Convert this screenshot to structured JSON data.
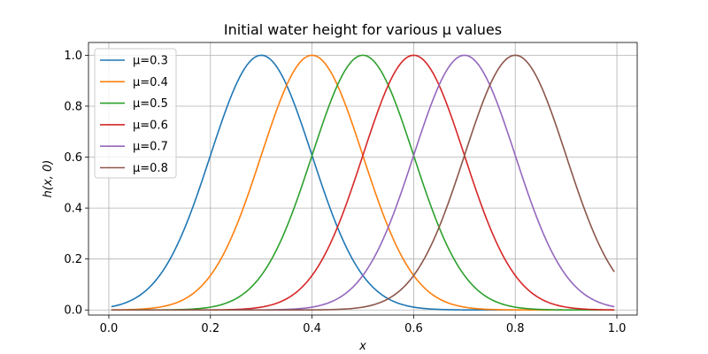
{
  "chart_data": {
    "type": "line",
    "title": "Initial water height for various μ values",
    "xlabel": "x",
    "ylabel": "h(x, 0)",
    "xlim": [
      -0.04,
      1.04
    ],
    "ylim": [
      -0.02,
      1.05
    ],
    "xticks": [
      0.0,
      0.2,
      0.4,
      0.6,
      0.8,
      1.0
    ],
    "xtick_labels": [
      "0.0",
      "0.2",
      "0.4",
      "0.6",
      "0.8",
      "1.0"
    ],
    "yticks": [
      0.0,
      0.2,
      0.4,
      0.6,
      0.8,
      1.0
    ],
    "ytick_labels": [
      "0.0",
      "0.2",
      "0.4",
      "0.6",
      "0.8",
      "1.0"
    ],
    "grid": true,
    "legend_position": "top-left",
    "x_range": [
      0.005,
      0.995
    ],
    "series": [
      {
        "name": "μ=0.3",
        "mu": 0.3,
        "color": "#1f77b4",
        "x": [
          0.005,
          0.05,
          0.1,
          0.15,
          0.2,
          0.25,
          0.3,
          0.35,
          0.4,
          0.45,
          0.5,
          0.55,
          0.6,
          0.65,
          0.7,
          0.75,
          0.8,
          0.85,
          0.9,
          0.95,
          0.995
        ],
        "y": [
          0.013,
          0.044,
          0.135,
          0.325,
          0.607,
          0.882,
          1.0,
          0.882,
          0.607,
          0.325,
          0.135,
          0.044,
          0.011,
          0.002,
          0.0,
          0.0,
          0.0,
          0.0,
          0.0,
          0.0,
          0.0
        ]
      },
      {
        "name": "μ=0.4",
        "mu": 0.4,
        "color": "#ff7f0e",
        "x": [
          0.005,
          0.05,
          0.1,
          0.15,
          0.2,
          0.25,
          0.3,
          0.35,
          0.4,
          0.45,
          0.5,
          0.55,
          0.6,
          0.65,
          0.7,
          0.75,
          0.8,
          0.85,
          0.9,
          0.95,
          0.995
        ],
        "y": [
          0.0,
          0.002,
          0.011,
          0.044,
          0.135,
          0.325,
          0.607,
          0.882,
          1.0,
          0.882,
          0.607,
          0.325,
          0.135,
          0.044,
          0.011,
          0.002,
          0.0,
          0.0,
          0.0,
          0.0,
          0.0
        ]
      },
      {
        "name": "μ=0.5",
        "mu": 0.5,
        "color": "#2ca02c",
        "x": [
          0.005,
          0.05,
          0.1,
          0.15,
          0.2,
          0.25,
          0.3,
          0.35,
          0.4,
          0.45,
          0.5,
          0.55,
          0.6,
          0.65,
          0.7,
          0.75,
          0.8,
          0.85,
          0.9,
          0.95,
          0.995
        ],
        "y": [
          0.0,
          0.0,
          0.0,
          0.002,
          0.011,
          0.044,
          0.135,
          0.325,
          0.607,
          0.882,
          1.0,
          0.882,
          0.607,
          0.325,
          0.135,
          0.044,
          0.011,
          0.002,
          0.0,
          0.0,
          0.0
        ]
      },
      {
        "name": "μ=0.6",
        "mu": 0.6,
        "color": "#d62728",
        "x": [
          0.005,
          0.05,
          0.1,
          0.15,
          0.2,
          0.25,
          0.3,
          0.35,
          0.4,
          0.45,
          0.5,
          0.55,
          0.6,
          0.65,
          0.7,
          0.75,
          0.8,
          0.85,
          0.9,
          0.95,
          0.995
        ],
        "y": [
          0.0,
          0.0,
          0.0,
          0.0,
          0.0,
          0.002,
          0.011,
          0.044,
          0.135,
          0.325,
          0.607,
          0.882,
          1.0,
          0.882,
          0.607,
          0.325,
          0.135,
          0.044,
          0.011,
          0.002,
          0.0
        ]
      },
      {
        "name": "μ=0.7",
        "mu": 0.7,
        "color": "#9467bd",
        "x": [
          0.005,
          0.05,
          0.1,
          0.15,
          0.2,
          0.25,
          0.3,
          0.35,
          0.4,
          0.45,
          0.5,
          0.55,
          0.6,
          0.65,
          0.7,
          0.75,
          0.8,
          0.85,
          0.9,
          0.95,
          0.995
        ],
        "y": [
          0.0,
          0.0,
          0.0,
          0.0,
          0.0,
          0.0,
          0.0,
          0.002,
          0.011,
          0.044,
          0.135,
          0.325,
          0.607,
          0.882,
          1.0,
          0.882,
          0.607,
          0.325,
          0.135,
          0.044,
          0.013
        ]
      },
      {
        "name": "μ=0.8",
        "mu": 0.8,
        "color": "#8c564b",
        "x": [
          0.005,
          0.05,
          0.1,
          0.15,
          0.2,
          0.25,
          0.3,
          0.35,
          0.4,
          0.45,
          0.5,
          0.55,
          0.6,
          0.65,
          0.7,
          0.75,
          0.8,
          0.85,
          0.9,
          0.95,
          0.995
        ],
        "y": [
          0.0,
          0.0,
          0.0,
          0.0,
          0.0,
          0.0,
          0.0,
          0.0,
          0.0,
          0.002,
          0.011,
          0.044,
          0.135,
          0.325,
          0.607,
          0.882,
          1.0,
          0.882,
          0.607,
          0.325,
          0.149
        ]
      }
    ]
  }
}
